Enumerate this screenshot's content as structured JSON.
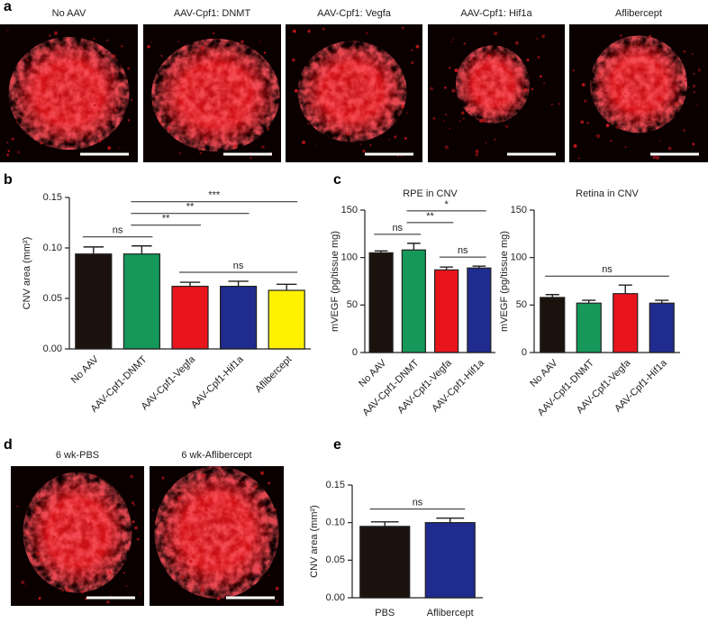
{
  "panel_labels": [
    "a",
    "b",
    "c",
    "d",
    "e"
  ],
  "row_a_captions": [
    "No AAV",
    "AAV-Cpf1: DNMT",
    "AAV-Cpf1: Vegfa",
    "AAV-Cpf1: Hif1a",
    "Aflibercept"
  ],
  "row_d_captions": [
    "6 wk-PBS",
    "6 wk-Aflibercept"
  ],
  "chart_data": [
    {
      "type": "bar",
      "y_label": "CNV area (mm²)",
      "categories": [
        "No AAV",
        "AAV-Cpf1-DNMT",
        "AAV-Cpf1-Vegfa",
        "AAV-Cpf1-Hif1a",
        "Aflibercept"
      ],
      "values": [
        0.094,
        0.094,
        0.062,
        0.062,
        0.058
      ],
      "errors": [
        0.007,
        0.008,
        0.004,
        0.005,
        0.006
      ],
      "colors": [
        "#1c120d",
        "#15985a",
        "#e8141c",
        "#1f2b8e",
        "#fff200"
      ],
      "ylim": [
        0,
        0.15
      ],
      "yticks": [
        {
          "value": 0,
          "label": "0.00"
        },
        {
          "value": 0.05,
          "label": "0.05"
        },
        {
          "value": 0.1,
          "label": "0.10"
        },
        {
          "value": 0.15,
          "label": "0.15"
        }
      ],
      "annotations": [
        {
          "from": 0,
          "to": 1,
          "label": "ns"
        },
        {
          "from": 2,
          "to": 4,
          "label": "ns"
        },
        {
          "from": 1,
          "to": 2,
          "label": "**"
        },
        {
          "from": 1,
          "to": 3,
          "label": "**"
        },
        {
          "from": 1,
          "to": 4,
          "label": "***"
        }
      ]
    },
    {
      "type": "bar",
      "title": "RPE in CNV",
      "y_label": "mVEGF (pg/tissue mg)",
      "categories": [
        "No AAV",
        "AAV-Cpf1-DNMT",
        "AAV-Cpf1-Vegfa",
        "AAV-Cpf1-Hif1a"
      ],
      "values": [
        105,
        108,
        87,
        89
      ],
      "errors": [
        2,
        7,
        3,
        2
      ],
      "colors": [
        "#1c120d",
        "#15985a",
        "#e8141c",
        "#1f2b8e"
      ],
      "ylim": [
        0,
        150
      ],
      "yticks": [
        0,
        50,
        100,
        150
      ],
      "annotations": [
        {
          "from": 0,
          "to": 1,
          "label": "ns"
        },
        {
          "from": 2,
          "to": 3,
          "label": "ns"
        },
        {
          "from": 1,
          "to": 2,
          "label": "**"
        },
        {
          "from": 1,
          "to": 3,
          "label": "*"
        }
      ]
    },
    {
      "type": "bar",
      "title": "Retina in CNV",
      "y_label": "mVEGF (pg/tissue mg)",
      "categories": [
        "No AAV",
        "AAV-Cpf1-DNMT",
        "AAV-Cpf1-Vegfa",
        "AAV-Cpf1-Hif1a"
      ],
      "values": [
        58,
        52,
        62,
        52
      ],
      "errors": [
        3,
        3,
        9,
        3
      ],
      "colors": [
        "#1c120d",
        "#15985a",
        "#e8141c",
        "#1f2b8e"
      ],
      "ylim": [
        0,
        150
      ],
      "yticks": [
        0,
        50,
        100,
        150
      ],
      "annotations": [
        {
          "from": 0,
          "to": 3,
          "label": "ns"
        }
      ]
    },
    {
      "type": "bar",
      "y_label": "CNV area (mm²)",
      "categories": [
        "PBS",
        "Aflibercept"
      ],
      "values": [
        0.095,
        0.1
      ],
      "errors": [
        0.006,
        0.006
      ],
      "colors": [
        "#1c120d",
        "#1f2b8e"
      ],
      "ylim": [
        0,
        0.15
      ],
      "yticks": [
        {
          "value": 0,
          "label": "0.00"
        },
        {
          "value": 0.05,
          "label": "0.05"
        },
        {
          "value": 0.1,
          "label": "0.10"
        },
        {
          "value": 0.15,
          "label": "0.15"
        }
      ],
      "annotations": [
        {
          "from": 0,
          "to": 1,
          "label": "ns"
        }
      ]
    }
  ]
}
